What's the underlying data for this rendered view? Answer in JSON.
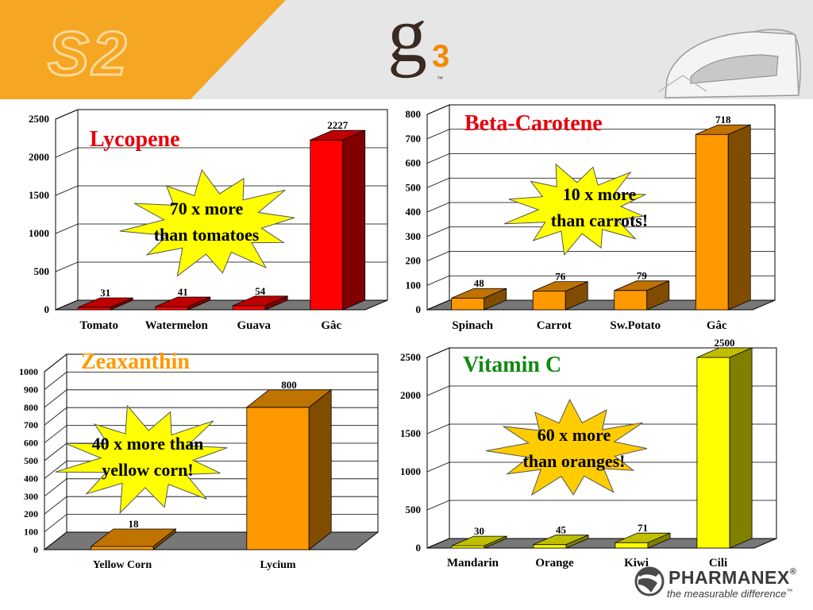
{
  "brand": {
    "logo_left": "S2",
    "logo_center": "g",
    "logo_center_sup": "3",
    "logo_center_tm": "™",
    "company": "PHARMANEX",
    "company_reg": "®",
    "tagline": "the measurable difference",
    "tagline_tm": "™"
  },
  "colors": {
    "header_bg": "#e6e6e6",
    "wedge": "#f5a623"
  },
  "chart_data": [
    {
      "type": "bar",
      "title": "Lycopene",
      "title_color": "#e8000b",
      "categories": [
        "Tomato",
        "Watermelon",
        "Guava",
        "Gâc"
      ],
      "values": [
        31,
        41,
        54,
        2227
      ],
      "value_labels": [
        "31",
        "41",
        "54",
        "2227"
      ],
      "ylim": [
        0,
        2500
      ],
      "yticks": [
        0,
        500,
        1000,
        1500,
        2000,
        2500
      ],
      "bar_color": "#ff0000",
      "burst_text": [
        "70 x more",
        "than tomatoes"
      ],
      "burst_color": "#ffff00"
    },
    {
      "type": "bar",
      "title": "Beta-Carotene",
      "title_color": "#e8000b",
      "categories": [
        "Spinach",
        "Carrot",
        "Sw.Potato",
        "Gâc"
      ],
      "values": [
        48,
        76,
        79,
        718
      ],
      "value_labels": [
        "48",
        "76",
        "79",
        "718"
      ],
      "ylim": [
        0,
        800
      ],
      "yticks": [
        0,
        100,
        200,
        300,
        400,
        500,
        600,
        700,
        800
      ],
      "bar_color": "#ff9900",
      "burst_text": [
        "10 x more",
        "than carrots!"
      ],
      "burst_color": "#ffff00"
    },
    {
      "type": "bar",
      "title": "Zeaxanthin",
      "title_color": "#ff9900",
      "categories": [
        "Yellow Corn",
        "Lycium"
      ],
      "values": [
        18,
        800
      ],
      "value_labels": [
        "18",
        "800"
      ],
      "ylim": [
        0,
        1000
      ],
      "yticks": [
        0,
        100,
        200,
        300,
        400,
        500,
        600,
        700,
        800,
        900,
        1000
      ],
      "bar_color": "#ff9900",
      "burst_text": [
        "40 x more than",
        "yellow corn!"
      ],
      "burst_color": "#ffff00"
    },
    {
      "type": "bar",
      "title": "Vitamin C",
      "title_color": "#108a10",
      "categories": [
        "Mandarin",
        "Orange",
        "Kiwi",
        "Cili"
      ],
      "values": [
        30,
        45,
        71,
        2500
      ],
      "value_labels": [
        "30",
        "45",
        "71",
        "2500"
      ],
      "ylim": [
        0,
        2500
      ],
      "yticks": [
        0,
        500,
        1000,
        1500,
        2000,
        2500
      ],
      "bar_color": "#ffff00",
      "burst_text": [
        "60 x more",
        "than oranges!"
      ],
      "burst_color": "#ffcc00"
    }
  ]
}
